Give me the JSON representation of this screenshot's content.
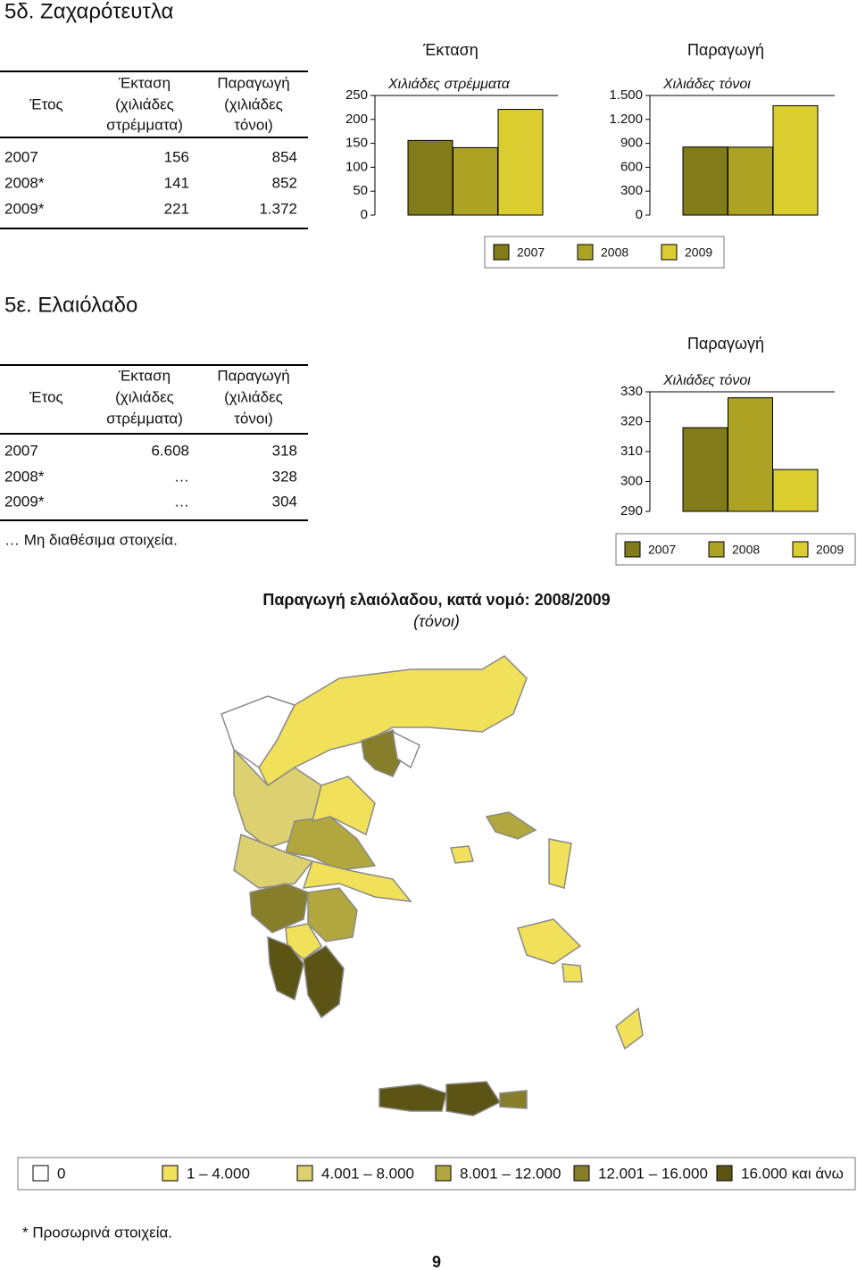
{
  "sections": [
    {
      "title": "5δ. Ζαχαρότευτλα",
      "table": {
        "header": [
          [
            "Έτος"
          ],
          [
            "Έκταση",
            "(χιλιάδες",
            "στρέμματα)"
          ],
          [
            "Παραγωγή",
            "(χιλιάδες",
            "τόνοι)"
          ]
        ],
        "rows": [
          [
            "2007",
            "156",
            "854"
          ],
          [
            "2008*",
            "141",
            "852"
          ],
          [
            "2009*",
            "221",
            "1.372"
          ]
        ]
      }
    },
    {
      "title": "5ε. Ελαιόλαδο",
      "table": {
        "header": [
          [
            "Έτος"
          ],
          [
            "Έκταση",
            "(χιλιάδες",
            "στρέμματα)"
          ],
          [
            "Παραγωγή",
            "(χιλιάδες",
            "τόνοι)"
          ]
        ],
        "rows": [
          [
            "2007",
            "6.608",
            "318"
          ],
          [
            "2008*",
            "…",
            "328"
          ],
          [
            "2009*",
            "…",
            "304"
          ]
        ]
      },
      "note": "… Μη διαθέσιμα στοιχεία."
    }
  ],
  "chart_data": [
    {
      "type": "bar",
      "title": "Έκταση",
      "subtitle": "Χιλιάδες στρέμματα",
      "categories": [
        "2007",
        "2008",
        "2009"
      ],
      "colors": [
        "#817b19",
        "#aca325",
        "#dacd30"
      ],
      "values": [
        156,
        141,
        221
      ],
      "ylim": [
        0,
        250
      ],
      "yticks": [
        0,
        50,
        100,
        150,
        200,
        250
      ]
    },
    {
      "type": "bar",
      "title": "Παραγωγή",
      "subtitle": "Χιλιάδες τόνοι",
      "colors": [
        "#817b19",
        "#aca325",
        "#dacd30"
      ],
      "values": [
        854,
        852,
        1372
      ],
      "ylim": [
        0,
        1500
      ],
      "yticks": [
        0,
        300,
        600,
        900,
        {
          "value": 1200,
          "label": "1.200"
        },
        {
          "value": 1500,
          "label": "1.500"
        }
      ]
    },
    {
      "type": "bar",
      "title": "Παραγωγή",
      "subtitle": "Χιλιάδες τόνοι",
      "categories": [
        "2007",
        "2008",
        "2009"
      ],
      "colors": [
        "#817b19",
        "#aca325",
        "#dacd30"
      ],
      "values": [
        318,
        328,
        304
      ],
      "ylim": [
        290,
        330
      ],
      "yticks": [
        290,
        300,
        310,
        320,
        330
      ]
    }
  ],
  "map": {
    "title": "Παραγωγή ελαιόλαδου, κατά νομό: 2008/2009",
    "unit": "(τόνοι)",
    "legend": [
      {
        "label": "0",
        "color": "#ffffff"
      },
      {
        "label": "1 – 4.000",
        "color": "#f1e05a"
      },
      {
        "label": "4.001 – 8.000",
        "color": "#ddd070"
      },
      {
        "label": "8.001 – 12.000",
        "color": "#b1a73e"
      },
      {
        "label": "12.001 – 16.000",
        "color": "#867e2a"
      },
      {
        "label": "16.000 και άνω",
        "color": "#5b5414"
      }
    ]
  },
  "footnote": "* Προσωρινά στοιχεία.",
  "page": "9"
}
